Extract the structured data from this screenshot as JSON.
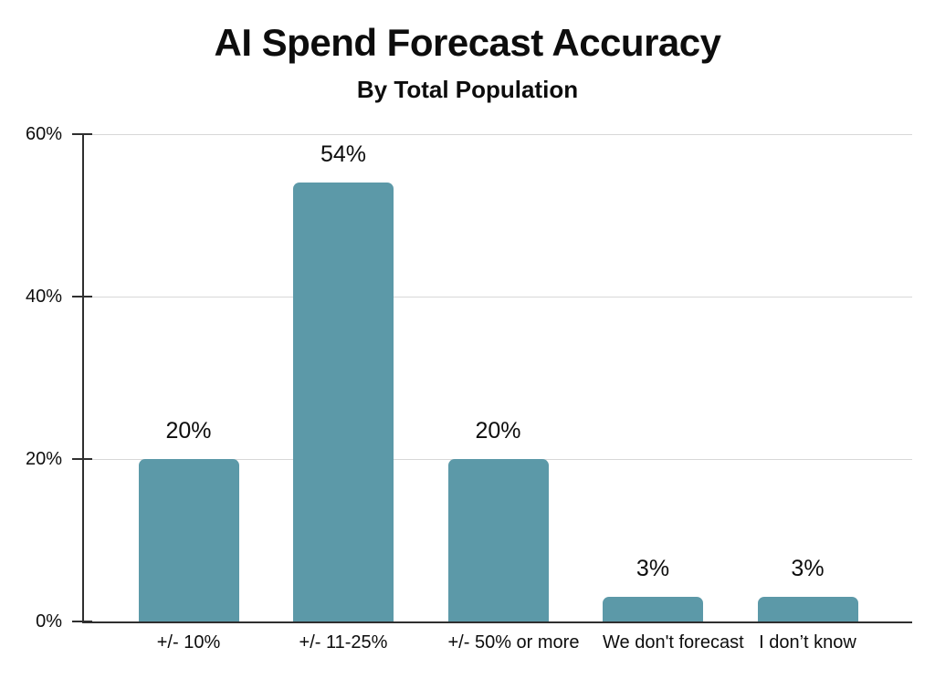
{
  "page": {
    "background": "#ffffff"
  },
  "chart_data": {
    "type": "bar",
    "title": "AI Spend Forecast Accuracy",
    "subtitle": "By Total Population",
    "categories": [
      "+/- 10%",
      "+/- 11-25%",
      "+/- 50% or more",
      "We don't forecast",
      "I don’t know"
    ],
    "values": [
      20,
      54,
      20,
      3,
      3
    ],
    "value_labels": [
      "20%",
      "54%",
      "20%",
      "3%",
      "3%"
    ],
    "y_ticks": [
      {
        "label": "0%",
        "value": 0
      },
      {
        "label": "20%",
        "value": 20
      },
      {
        "label": "40%",
        "value": 40
      },
      {
        "label": "60%",
        "value": 60
      }
    ],
    "ylim": [
      0,
      60
    ],
    "xlabel": "",
    "ylabel": "",
    "grid": true,
    "legend": false,
    "bar_color": "#5C99A8",
    "axis_color": "#2f2f2f",
    "gridline_color": "#d8d8d8",
    "text_color": "#0d0d0d"
  }
}
